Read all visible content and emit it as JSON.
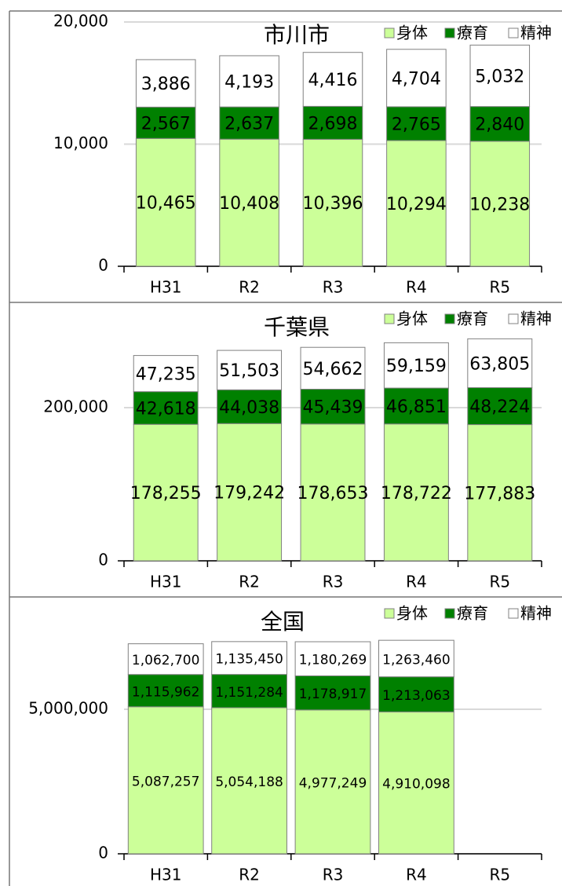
{
  "chart_data": [
    {
      "type": "bar",
      "stacked": true,
      "title": "市川市",
      "categories": [
        "H31",
        "R2",
        "R3",
        "R4",
        "R5"
      ],
      "series": [
        {
          "name": "身体",
          "color": "#ccff99",
          "values": [
            10465,
            10408,
            10396,
            10294,
            10238
          ],
          "value_labels": [
            "10,465",
            "10,408",
            "10,396",
            "10,294",
            "10,238"
          ]
        },
        {
          "name": "療育",
          "color": "#008000",
          "values": [
            2567,
            2637,
            2698,
            2765,
            2840
          ],
          "value_labels": [
            "2,567",
            "2,637",
            "2,698",
            "2,765",
            "2,840"
          ]
        },
        {
          "name": "精神",
          "color": "#ffffff",
          "values": [
            3886,
            4193,
            4416,
            4704,
            5032
          ],
          "value_labels": [
            "3,886",
            "4,193",
            "4,416",
            "4,704",
            "5,032"
          ]
        }
      ],
      "ylim": [
        0,
        20000
      ],
      "yticks": [
        0,
        {
          "value": 10000,
          "label": "10,000"
        },
        {
          "value": 20000,
          "label": "20,000"
        }
      ],
      "grid": true,
      "legend": "top-right"
    },
    {
      "type": "bar",
      "stacked": true,
      "title": "千葉県",
      "categories": [
        "H31",
        "R2",
        "R3",
        "R4",
        "R5"
      ],
      "series": [
        {
          "name": "身体",
          "color": "#ccff99",
          "values": [
            178255,
            179242,
            178653,
            178722,
            177883
          ],
          "value_labels": [
            "178,255",
            "179,242",
            "178,653",
            "178,722",
            "177,883"
          ]
        },
        {
          "name": "療育",
          "color": "#008000",
          "values": [
            42618,
            44038,
            45439,
            46851,
            48224
          ],
          "value_labels": [
            "42,618",
            "44,038",
            "45,439",
            "46,851",
            "48,224"
          ]
        },
        {
          "name": "精神",
          "color": "#ffffff",
          "values": [
            47235,
            51503,
            54662,
            59159,
            63805
          ],
          "value_labels": [
            "47,235",
            "51,503",
            "54,662",
            "59,159",
            "63,805"
          ]
        }
      ],
      "ylim": [
        0,
        300000
      ],
      "yticks": [
        0,
        {
          "value": 200000,
          "label": "200,000"
        }
      ],
      "grid": true,
      "legend": "top-right"
    },
    {
      "type": "bar",
      "stacked": true,
      "title": "全国",
      "categories": [
        "H31",
        "R2",
        "R3",
        "R4",
        "R5"
      ],
      "series": [
        {
          "name": "身体",
          "color": "#ccff99",
          "values": [
            5087257,
            5054188,
            4977249,
            4910098,
            null
          ],
          "value_labels": [
            "5,087,257",
            "5,054,188",
            "4,977,249",
            "4,910,098",
            null
          ]
        },
        {
          "name": "療育",
          "color": "#008000",
          "values": [
            1115962,
            1151284,
            1178917,
            1213063,
            null
          ],
          "value_labels": [
            "1,115,962",
            "1,151,284",
            "1,178,917",
            "1,213,063",
            null
          ]
        },
        {
          "name": "精神",
          "color": "#ffffff",
          "values": [
            1062700,
            1135450,
            1180269,
            1263460,
            null
          ],
          "value_labels": [
            "1,062,700",
            "1,135,450",
            "1,180,269",
            "1,263,460",
            null
          ]
        }
      ],
      "ylim": [
        0,
        8000000
      ],
      "yticks": [
        0,
        {
          "value": 5000000,
          "label": "5,000,000"
        }
      ],
      "grid": true,
      "legend": "top-right"
    }
  ]
}
